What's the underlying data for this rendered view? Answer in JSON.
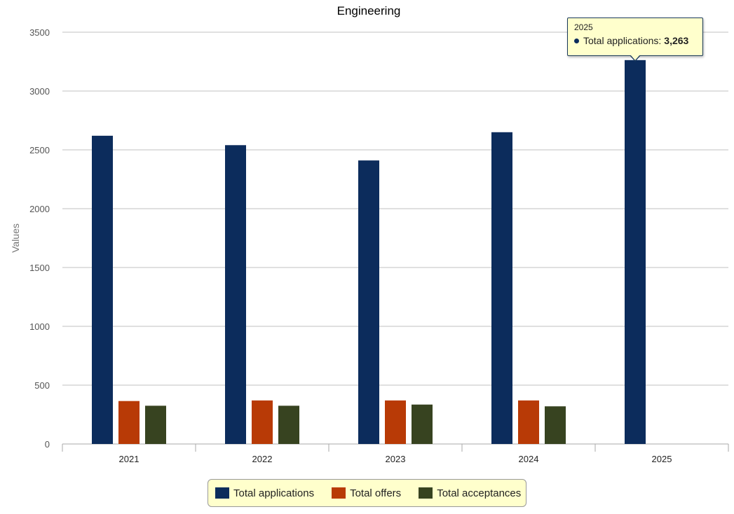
{
  "chart_data": {
    "type": "bar",
    "title": "Engineering",
    "xlabel": "",
    "ylabel": "Values",
    "ylim": [
      0,
      3500
    ],
    "yticks": [
      0,
      500,
      1000,
      1500,
      2000,
      2500,
      3000,
      3500
    ],
    "categories": [
      "2021",
      "2022",
      "2023",
      "2024",
      "2025"
    ],
    "series": [
      {
        "name": "Total applications",
        "color": "#0c2c5c",
        "values": [
          2620,
          2540,
          2410,
          2650,
          3263
        ]
      },
      {
        "name": "Total offers",
        "color": "#b83a06",
        "values": [
          365,
          370,
          370,
          370,
          null
        ]
      },
      {
        "name": "Total acceptances",
        "color": "#374320",
        "values": [
          325,
          325,
          335,
          320,
          null
        ]
      }
    ],
    "grid": true,
    "legend_position": "bottom"
  },
  "tooltip": {
    "title": "2025",
    "series_label": "Total applications:",
    "value": "3,263",
    "color": "#0c2c5c"
  }
}
